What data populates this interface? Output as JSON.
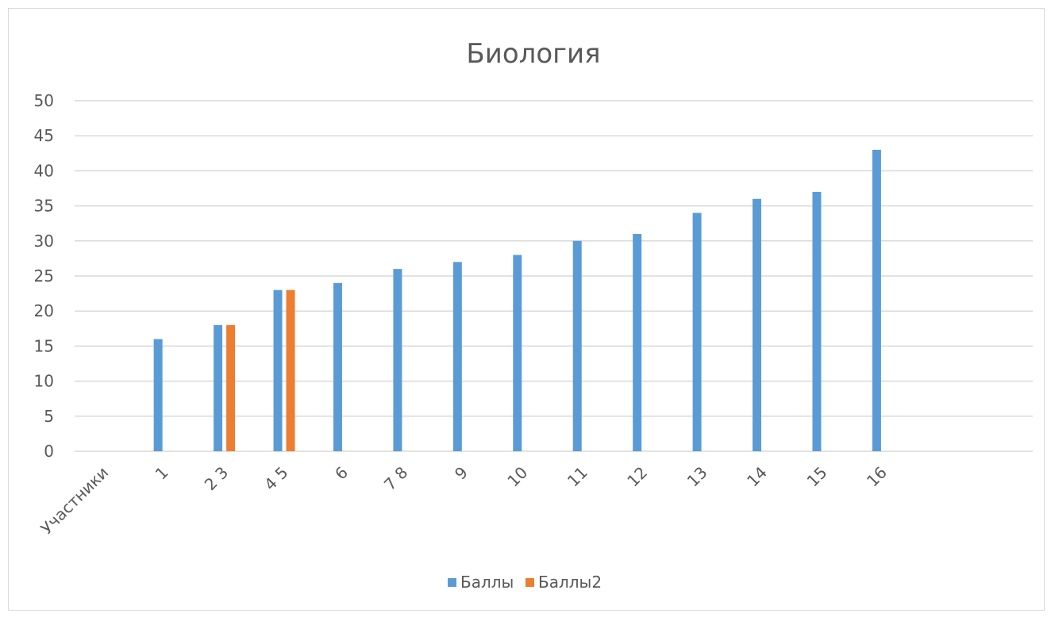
{
  "chart_data": {
    "type": "bar",
    "title": "Биология",
    "xlabel": "",
    "ylabel": "",
    "ylim": [
      0,
      50
    ],
    "yticks": [
      0,
      5,
      10,
      15,
      20,
      25,
      30,
      35,
      40,
      45,
      50
    ],
    "grid": true,
    "legend_position": "bottom",
    "categories": [
      "Участники",
      "1",
      "2 3",
      "4 5",
      "6",
      "7 8",
      "9",
      "10",
      "11",
      "12",
      "13",
      "14",
      "15",
      "16",
      "",
      ""
    ],
    "series": [
      {
        "name": "Баллы",
        "color": "#5b9bd5",
        "values": [
          null,
          16,
          18,
          23,
          24,
          26,
          27,
          28,
          30,
          31,
          34,
          36,
          37,
          43,
          null,
          null
        ]
      },
      {
        "name": "Баллы2",
        "color": "#ed7d31",
        "values": [
          null,
          null,
          18,
          23,
          null,
          null,
          null,
          null,
          null,
          null,
          null,
          null,
          null,
          null,
          null,
          null
        ]
      }
    ]
  }
}
